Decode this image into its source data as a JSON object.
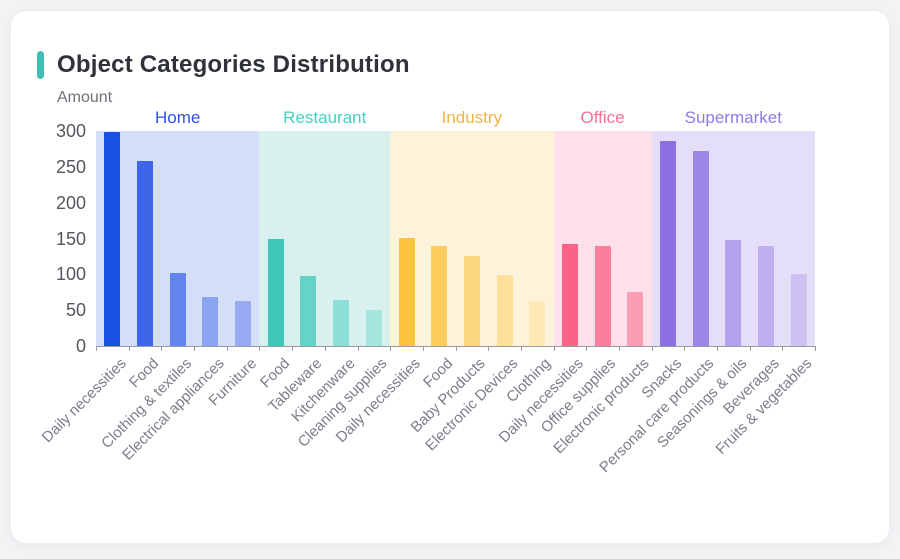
{
  "theme": {
    "accent_bar_color": "#3fbeb4",
    "card_background": "#ffffff",
    "page_background": "#f2f3f5",
    "axis_color": "#9a9ca1",
    "y_tick_color": "#55575e",
    "x_label_color": "#7b7e89"
  },
  "chart_data": {
    "type": "bar",
    "title": "Object Categories Distribution",
    "ylabel": "Amount",
    "xlabel": "",
    "ylim": [
      0,
      300
    ],
    "yticks": [
      0,
      50,
      100,
      150,
      200,
      250,
      300
    ],
    "grid": false,
    "legend_position": "none",
    "groups": [
      {
        "name": "Home",
        "label_color": "#2e50e8",
        "band_color": "#d4def6",
        "bars": [
          {
            "label": "Daily necessities",
            "value": 298,
            "color": "#1a4fe4"
          },
          {
            "label": "Food",
            "value": 258,
            "color": "#4066e8"
          },
          {
            "label": "Clothing & textiles",
            "value": 102,
            "color": "#6384ec"
          },
          {
            "label": "Electrical appliances",
            "value": 68,
            "color": "#8ba4f1"
          },
          {
            "label": "Furniture",
            "value": 63,
            "color": "#98abf2"
          }
        ]
      },
      {
        "name": "Restaurant",
        "label_color": "#45cfc1",
        "band_color": "#d9f1ee",
        "bars": [
          {
            "label": "Food",
            "value": 149,
            "color": "#3fc8b9"
          },
          {
            "label": "Tableware",
            "value": 97,
            "color": "#66d3c8"
          },
          {
            "label": "Kitchenware",
            "value": 64,
            "color": "#8cdfd7"
          },
          {
            "label": "Cleaning supplies",
            "value": 50,
            "color": "#a4e5de"
          }
        ]
      },
      {
        "name": "Industry",
        "label_color": "#edb546",
        "band_color": "#fdf3da",
        "bars": [
          {
            "label": "Daily necessities",
            "value": 151,
            "color": "#fdc33c"
          },
          {
            "label": "Food",
            "value": 139,
            "color": "#fdcd5e"
          },
          {
            "label": "Baby Products",
            "value": 126,
            "color": "#fdd77d"
          },
          {
            "label": "Electronic Devices",
            "value": 99,
            "color": "#fee09b"
          },
          {
            "label": "Clothing",
            "value": 63,
            "color": "#fee8b6"
          }
        ]
      },
      {
        "name": "Office",
        "label_color": "#fa6e96",
        "band_color": "#fde0ea",
        "bars": [
          {
            "label": "Daily necessities",
            "value": 143,
            "color": "#fa6288"
          },
          {
            "label": "Office supplies",
            "value": 139,
            "color": "#fb7e9d"
          },
          {
            "label": "Electronic products",
            "value": 75,
            "color": "#fc9db6"
          }
        ]
      },
      {
        "name": "Supermarket",
        "label_color": "#9179e8",
        "band_color": "#e4def8",
        "bars": [
          {
            "label": "Snacks",
            "value": 286,
            "color": "#8a70e0"
          },
          {
            "label": "Personal care products",
            "value": 272,
            "color": "#9c86e6"
          },
          {
            "label": "Seasonings & oils",
            "value": 148,
            "color": "#b2a2ec"
          },
          {
            "label": "Beverages",
            "value": 140,
            "color": "#bfb0ef"
          },
          {
            "label": "Fruits & vegetables",
            "value": 101,
            "color": "#cdc1f2"
          }
        ]
      }
    ]
  }
}
